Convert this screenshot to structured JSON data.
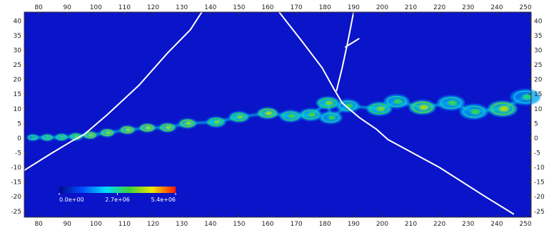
{
  "chart_data": {
    "type": "heatmap",
    "title": "",
    "xlabel": "",
    "ylabel": "",
    "xlim": [
      75,
      252
    ],
    "ylim": [
      -27,
      43
    ],
    "x_ticks": [
      80,
      90,
      100,
      110,
      120,
      130,
      140,
      150,
      160,
      170,
      180,
      190,
      200,
      210,
      220,
      230,
      240,
      250
    ],
    "y_ticks": [
      -25,
      -20,
      -15,
      -10,
      -5,
      0,
      5,
      10,
      15,
      20,
      25,
      30,
      35,
      40
    ],
    "ticks_on_all_sides": true,
    "background_value": 0,
    "colormap": [
      "#000c8c",
      "#0050ff",
      "#00dcff",
      "#3cd23c",
      "#f0e600",
      "#ff1400"
    ],
    "colorbar": {
      "placement": "lower-left, inside plot",
      "tick_labels": [
        "0.0e+00",
        "2.7e+06",
        "5.4e+06"
      ],
      "min": 0,
      "max": 5400000
    },
    "vortex_train": [
      {
        "x": 78,
        "y": 0.2,
        "intensity": 0.45
      },
      {
        "x": 83,
        "y": 0.2,
        "intensity": 0.5
      },
      {
        "x": 88,
        "y": 0.3,
        "intensity": 0.5
      },
      {
        "x": 93,
        "y": 0.5,
        "intensity": 0.55
      },
      {
        "x": 98,
        "y": 1.0,
        "intensity": 0.6
      },
      {
        "x": 104,
        "y": 1.8,
        "intensity": 0.6
      },
      {
        "x": 111,
        "y": 2.8,
        "intensity": 0.62
      },
      {
        "x": 118,
        "y": 3.5,
        "intensity": 0.62
      },
      {
        "x": 125,
        "y": 3.6,
        "intensity": 0.6
      },
      {
        "x": 132,
        "y": 5.0,
        "intensity": 0.6
      },
      {
        "x": 142,
        "y": 5.5,
        "intensity": 0.55
      },
      {
        "x": 150,
        "y": 7.2,
        "intensity": 0.55
      },
      {
        "x": 160,
        "y": 8.5,
        "intensity": 0.6
      },
      {
        "x": 168,
        "y": 7.5,
        "intensity": 0.5
      },
      {
        "x": 175,
        "y": 8.0,
        "intensity": 0.5
      },
      {
        "x": 181,
        "y": 12.0,
        "intensity": 0.55
      },
      {
        "x": 182,
        "y": 7.0,
        "intensity": 0.45
      },
      {
        "x": 188,
        "y": 11.0,
        "intensity": 0.45
      },
      {
        "x": 199,
        "y": 10.0,
        "intensity": 0.55
      },
      {
        "x": 205,
        "y": 12.5,
        "intensity": 0.45
      },
      {
        "x": 214,
        "y": 10.5,
        "intensity": 0.6
      },
      {
        "x": 224,
        "y": 12.0,
        "intensity": 0.45
      },
      {
        "x": 232,
        "y": 9.0,
        "intensity": 0.45
      },
      {
        "x": 242,
        "y": 10.0,
        "intensity": 0.6
      },
      {
        "x": 250,
        "y": 14.0,
        "intensity": 0.4
      }
    ],
    "overlay_lines": [
      {
        "points": [
          [
            75,
            -11
          ],
          [
            84,
            -5.5
          ],
          [
            92,
            -0.8
          ],
          [
            96,
            1.3
          ],
          [
            104,
            8
          ],
          [
            115,
            18
          ],
          [
            125,
            29
          ],
          [
            133,
            37
          ],
          [
            137,
            43
          ]
        ]
      },
      {
        "points": [
          [
            164,
            43
          ],
          [
            172,
            33
          ],
          [
            179,
            24
          ],
          [
            183,
            17
          ],
          [
            186,
            12
          ],
          [
            192,
            7
          ],
          [
            198,
            3
          ],
          [
            202,
            -0.5
          ],
          [
            220,
            -10
          ],
          [
            236,
            -20
          ],
          [
            246,
            -26
          ]
        ]
      },
      {
        "points": [
          [
            190,
            43
          ],
          [
            188,
            33
          ],
          [
            186,
            24
          ],
          [
            184,
            16
          ]
        ]
      },
      {
        "points": [
          [
            187,
            31
          ],
          [
            192,
            34
          ]
        ]
      }
    ]
  }
}
